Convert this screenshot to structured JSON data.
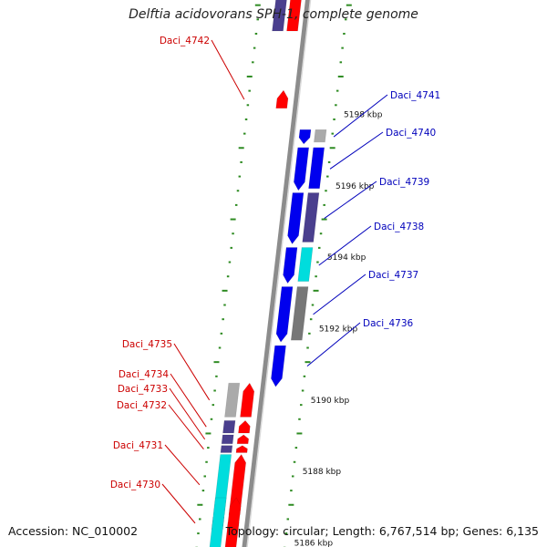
{
  "title": "Delftia acidovorans SPH-1, complete genome",
  "accession_label": "Accession: NC_010002",
  "summary_label": "Topology: circular; Length: 6,767,514 bp; Genes: 6,135",
  "colors": {
    "backbone": "#8c8c8c",
    "ruler": "#2e8b22",
    "forward_label": "#cc0000",
    "reverse_label": "#0000bb",
    "cds_forward": "#ff0000",
    "cds_forward_light": "#ffaaaa",
    "cds_reverse": "#0000ee",
    "cds_reverse_dark": "#4a3f8e",
    "gray": "#aaaaaa",
    "cyan": "#00dddd"
  },
  "ruler_labels": [
    {
      "label": "5198 kbp",
      "kbp": 5198
    },
    {
      "label": "5196 kbp",
      "kbp": 5196
    },
    {
      "label": "5194 kbp",
      "kbp": 5194
    },
    {
      "label": "5192 kbp",
      "kbp": 5192
    },
    {
      "label": "5190 kbp",
      "kbp": 5190
    },
    {
      "label": "5188 kbp",
      "kbp": 5188
    },
    {
      "label": "5186 kbp",
      "kbp": 5186
    }
  ],
  "reverse_genes": [
    {
      "label": "Daci_4741",
      "start_kbp": 5197.55,
      "end_kbp": 5197.15
    },
    {
      "label": "Daci_4740",
      "start_kbp": 5197.05,
      "end_kbp": 5195.85
    },
    {
      "label": "Daci_4739",
      "start_kbp": 5195.78,
      "end_kbp": 5194.35
    },
    {
      "label": "Daci_4738",
      "start_kbp": 5194.25,
      "end_kbp": 5193.25
    },
    {
      "label": "Daci_4737",
      "start_kbp": 5193.15,
      "end_kbp": 5191.6
    },
    {
      "label": "Daci_4736",
      "start_kbp": 5191.5,
      "end_kbp": 5190.35
    }
  ],
  "forward_genes": [
    {
      "label": "Daci_4742",
      "start_kbp": 5198.15,
      "end_kbp": 5198.65
    },
    {
      "label": "Daci_4735",
      "start_kbp": 5189.5,
      "end_kbp": 5190.45
    },
    {
      "label": "Daci_4734",
      "start_kbp": 5189.05,
      "end_kbp": 5189.4
    },
    {
      "label": "Daci_4733",
      "start_kbp": 5188.75,
      "end_kbp": 5189.0
    },
    {
      "label": "Daci_4732",
      "start_kbp": 5188.5,
      "end_kbp": 5188.7
    },
    {
      "label": "Daci_4731",
      "start_kbp": 5186.75,
      "end_kbp": 5188.45
    },
    {
      "label": "Daci_4730",
      "start_kbp": 5186.35,
      "end_kbp": 5186.7
    }
  ]
}
